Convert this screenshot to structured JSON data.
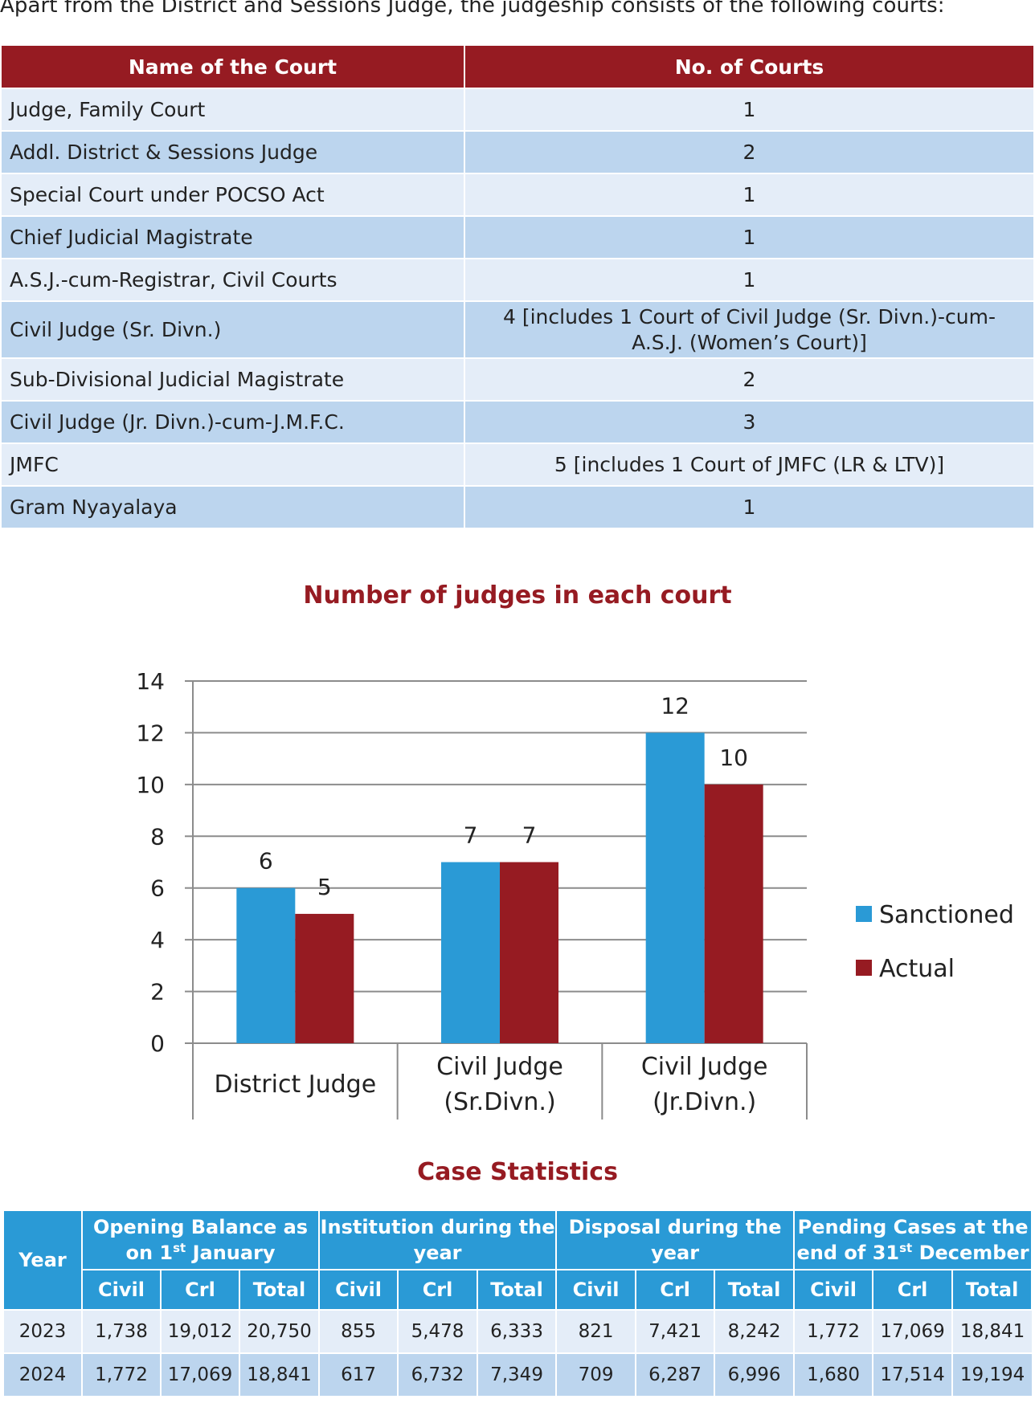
{
  "intro": "Apart from the District and Sessions Judge, the judgeship consists of the following courts:",
  "courts_table": {
    "headers": [
      "Name of the Court",
      "No. of Courts"
    ],
    "rows": [
      {
        "name": "Judge, Family Court",
        "count": "1"
      },
      {
        "name": "Addl. District & Sessions Judge",
        "count": "2"
      },
      {
        "name": "Special Court under POCSO Act",
        "count": "1"
      },
      {
        "name": "Chief Judicial Magistrate",
        "count": "1"
      },
      {
        "name": "A.S.J.-cum-Registrar, Civil Courts",
        "count": "1"
      },
      {
        "name": "Civil Judge (Sr. Divn.)",
        "count_line1": "4 [includes 1 Court of Civil Judge (Sr. Divn.)-cum-",
        "count_line2": "A.S.J. (Women’s Court)]"
      },
      {
        "name": "Sub-Divisional Judicial Magistrate",
        "count": "2"
      },
      {
        "name": "Civil Judge (Jr. Divn.)-cum-J.M.F.C.",
        "count": "3"
      },
      {
        "name": "JMFC",
        "count": "5 [includes 1 Court of JMFC (LR & LTV)]"
      },
      {
        "name": "Gram Nyayalaya",
        "count": "1"
      }
    ]
  },
  "chart_title": "Number of judges in each court",
  "chart_data": {
    "type": "bar",
    "categories": [
      [
        "District Judge"
      ],
      [
        "Civil Judge",
        "(Sr.Divn.)"
      ],
      [
        "Civil Judge",
        "(Jr.Divn.)"
      ]
    ],
    "series": [
      {
        "name": "Sanctioned",
        "values": [
          6,
          7,
          12
        ],
        "color": "#2a9ad6"
      },
      {
        "name": "Actual",
        "values": [
          5,
          7,
          10
        ],
        "color": "#961b22"
      }
    ],
    "ylim": [
      0,
      14
    ],
    "yticks": [
      0,
      2,
      4,
      6,
      8,
      10,
      12,
      14
    ],
    "grid": true,
    "legend": "right",
    "data_labels": true
  },
  "stats_title": "Case Statistics",
  "stats_table": {
    "year_header": "Year",
    "groups": [
      {
        "line1": "Opening Balance as",
        "line2_pre": "on 1",
        "line2_sup": "st",
        "line2_post": " January"
      },
      {
        "line1": "Institution during the",
        "line2_pre": "year",
        "line2_sup": "",
        "line2_post": ""
      },
      {
        "line1": "Disposal during the",
        "line2_pre": "year",
        "line2_sup": "",
        "line2_post": ""
      },
      {
        "line1": "Pending Cases at the",
        "line2_pre": "end of 31",
        "line2_sup": "st",
        "line2_post": " December"
      }
    ],
    "subheaders": [
      "Civil",
      "Crl",
      "Total"
    ],
    "rows": [
      {
        "year": "2023",
        "values": [
          "1,738",
          "19,012",
          "20,750",
          "855",
          "5,478",
          "6,333",
          "821",
          "7,421",
          "8,242",
          "1,772",
          "17,069",
          "18,841"
        ]
      },
      {
        "year": "2024",
        "values": [
          "1,772",
          "17,069",
          "18,841",
          "617",
          "6,732",
          "7,349",
          "709",
          "6,287",
          "6,996",
          "1,680",
          "17,514",
          "19,194"
        ]
      }
    ]
  }
}
